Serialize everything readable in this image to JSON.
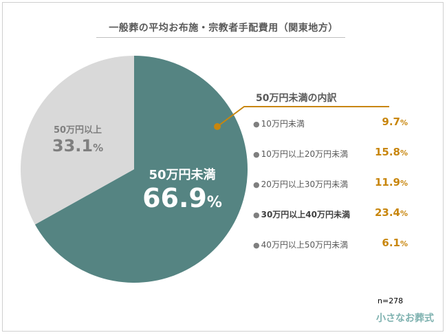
{
  "chart_data": {
    "type": "pie",
    "title": "一般葬の平均お布施・宗教者手配費用（関東地方）",
    "slices": [
      {
        "name": "50万円未満",
        "value": 66.9,
        "unit": "%",
        "color": "#558482"
      },
      {
        "name": "50万円以上",
        "value": 33.1,
        "unit": "%",
        "color": "#d9d9d9"
      }
    ],
    "breakdown": {
      "title": "50万円未満の内訳",
      "items": [
        {
          "label": "10万円未満",
          "value": 9.7,
          "unit": "%",
          "highlight": false
        },
        {
          "label": "10万円以上20万円未満",
          "value": 15.8,
          "unit": "%",
          "highlight": false
        },
        {
          "label": "20万円以上30万円未満",
          "value": 11.9,
          "unit": "%",
          "highlight": false
        },
        {
          "label": "30万円以上40万円未満",
          "value": 23.4,
          "unit": "%",
          "highlight": true
        },
        {
          "label": "40万円以上50万円未満",
          "value": 6.1,
          "unit": "%",
          "highlight": false
        }
      ],
      "color": "#c8860d"
    },
    "note": "n=278"
  },
  "logo": "小さなお葬式"
}
